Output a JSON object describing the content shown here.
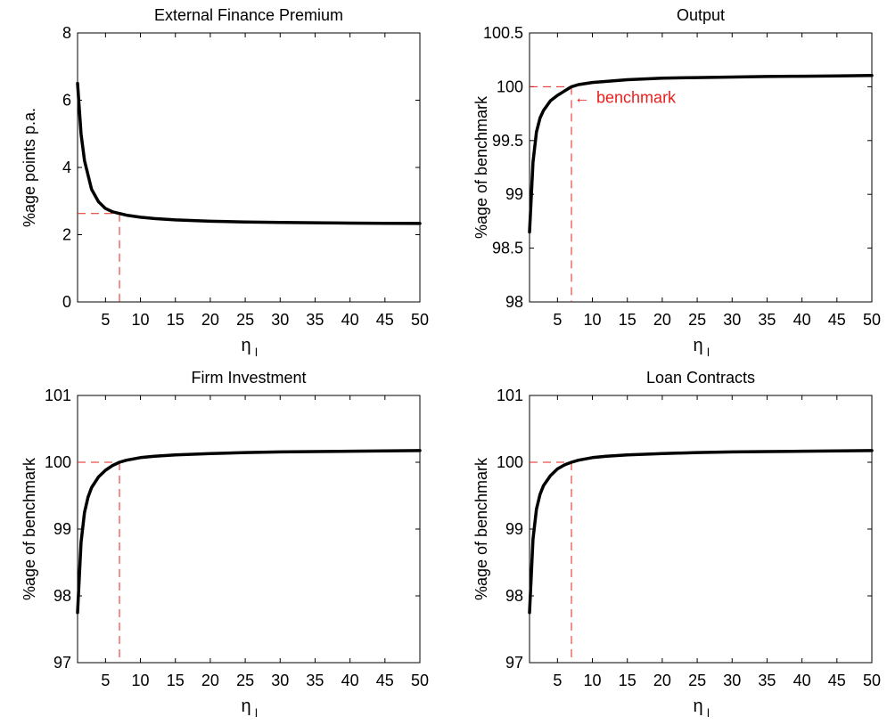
{
  "chart_data": [
    {
      "type": "line",
      "title": "External Finance Premium",
      "xlabel": "η",
      "xlabel_sub": "l",
      "ylabel": "%age points p.a.",
      "xlim": [
        1,
        50
      ],
      "ylim": [
        0,
        8
      ],
      "xticks": [
        5,
        10,
        15,
        20,
        25,
        30,
        35,
        40,
        45,
        50
      ],
      "yticks": [
        0,
        2,
        4,
        6,
        8
      ],
      "ytick_labels": [
        "0",
        "2",
        "4",
        "6",
        "8"
      ],
      "grid": false,
      "line_color": "#000000",
      "ref_color": "#e8201d",
      "benchmark": {
        "x": 7,
        "y": 2.63
      },
      "x": [
        1,
        1.5,
        2,
        3,
        4,
        5,
        6,
        7,
        8,
        10,
        12,
        15,
        20,
        25,
        30,
        35,
        40,
        45,
        50
      ],
      "y": [
        6.5,
        5.0,
        4.2,
        3.35,
        2.98,
        2.78,
        2.68,
        2.63,
        2.58,
        2.52,
        2.48,
        2.44,
        2.4,
        2.38,
        2.365,
        2.355,
        2.345,
        2.34,
        2.335
      ]
    },
    {
      "type": "line",
      "title": "Output",
      "xlabel": "η",
      "xlabel_sub": "l",
      "ylabel": "%age of benchmark",
      "xlim": [
        1,
        50
      ],
      "ylim": [
        98,
        100.5
      ],
      "xticks": [
        5,
        10,
        15,
        20,
        25,
        30,
        35,
        40,
        45,
        50
      ],
      "yticks": [
        98,
        98.5,
        99,
        99.5,
        100,
        100.5
      ],
      "ytick_labels": [
        "98",
        "98.5",
        "99",
        "99.5",
        "100",
        "100.5"
      ],
      "grid": false,
      "line_color": "#000000",
      "ref_color": "#e8201d",
      "benchmark": {
        "x": 7,
        "y": 100
      },
      "annotation": {
        "text": "benchmark",
        "arrow": "←",
        "x": 7,
        "y": 99.9
      },
      "x": [
        1,
        1.5,
        2,
        2.5,
        3,
        4,
        5,
        6,
        7,
        8,
        10,
        12,
        15,
        20,
        25,
        30,
        35,
        40,
        45,
        50
      ],
      "y": [
        98.65,
        99.3,
        99.58,
        99.71,
        99.78,
        99.87,
        99.92,
        99.96,
        100.0,
        100.02,
        100.04,
        100.05,
        100.065,
        100.08,
        100.085,
        100.09,
        100.095,
        100.098,
        100.1,
        100.105
      ]
    },
    {
      "type": "line",
      "title": "Firm Investment",
      "xlabel": "η",
      "xlabel_sub": "l",
      "ylabel": "%age of benchmark",
      "xlim": [
        1,
        50
      ],
      "ylim": [
        97,
        101
      ],
      "xticks": [
        5,
        10,
        15,
        20,
        25,
        30,
        35,
        40,
        45,
        50
      ],
      "yticks": [
        97,
        98,
        99,
        100,
        101
      ],
      "ytick_labels": [
        "97",
        "98",
        "99",
        "100",
        "101"
      ],
      "grid": false,
      "line_color": "#000000",
      "ref_color": "#e8201d",
      "benchmark": {
        "x": 7,
        "y": 100
      },
      "x": [
        1,
        1.5,
        2,
        2.5,
        3,
        4,
        5,
        6,
        7,
        8,
        10,
        12,
        15,
        20,
        25,
        30,
        35,
        40,
        45,
        50
      ],
      "y": [
        97.75,
        98.8,
        99.25,
        99.48,
        99.62,
        99.78,
        99.88,
        99.95,
        100.0,
        100.03,
        100.07,
        100.09,
        100.11,
        100.13,
        100.145,
        100.155,
        100.16,
        100.165,
        100.17,
        100.175
      ]
    },
    {
      "type": "line",
      "title": "Loan Contracts",
      "xlabel": "η",
      "xlabel_sub": "l",
      "ylabel": "%age of benchmark",
      "xlim": [
        1,
        50
      ],
      "ylim": [
        97,
        101
      ],
      "xticks": [
        5,
        10,
        15,
        20,
        25,
        30,
        35,
        40,
        45,
        50
      ],
      "yticks": [
        97,
        98,
        99,
        100,
        101
      ],
      "ytick_labels": [
        "97",
        "98",
        "99",
        "100",
        "101"
      ],
      "grid": false,
      "line_color": "#000000",
      "ref_color": "#e8201d",
      "benchmark": {
        "x": 7,
        "y": 100
      },
      "x": [
        1,
        1.5,
        2,
        2.5,
        3,
        4,
        5,
        6,
        7,
        8,
        10,
        12,
        15,
        20,
        25,
        30,
        35,
        40,
        45,
        50
      ],
      "y": [
        97.75,
        98.85,
        99.3,
        99.52,
        99.65,
        99.8,
        99.9,
        99.96,
        100.0,
        100.03,
        100.07,
        100.09,
        100.11,
        100.13,
        100.145,
        100.155,
        100.16,
        100.165,
        100.17,
        100.175
      ]
    }
  ]
}
